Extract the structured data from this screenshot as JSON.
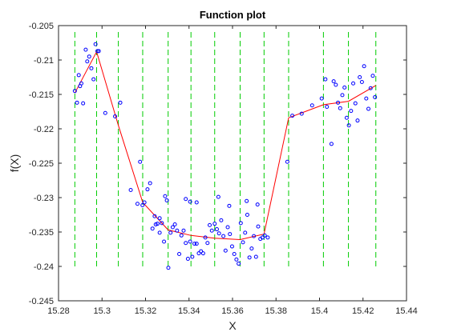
{
  "chart_data": {
    "type": "scatter",
    "title": "Function plot",
    "xlabel": "X",
    "ylabel": "f(X)",
    "xlim": [
      15.28,
      15.44
    ],
    "ylim": [
      -0.245,
      -0.205
    ],
    "xticks": [
      15.28,
      15.3,
      15.32,
      15.34,
      15.36,
      15.38,
      15.4,
      15.42,
      15.44
    ],
    "xtick_labels": [
      "15.28",
      "15.3",
      "15.32",
      "15.34",
      "15.36",
      "15.38",
      "15.4",
      "15.42",
      "15.44"
    ],
    "yticks": [
      -0.245,
      -0.24,
      -0.235,
      -0.23,
      -0.225,
      -0.22,
      -0.215,
      -0.21,
      -0.205
    ],
    "ytick_labels": [
      "-0.245",
      "-0.24",
      "-0.235",
      "-0.23",
      "-0.225",
      "-0.22",
      "-0.215",
      "-0.21",
      "-0.205"
    ],
    "grid": false,
    "colors": {
      "scatter": "#0000ff",
      "fit_line": "#ff0000",
      "breaks": "#00cc00",
      "axes": "#262626"
    },
    "vertical_break_lines": {
      "x": [
        15.2875,
        15.2975,
        15.3075,
        15.3187,
        15.3304,
        15.3409,
        15.3518,
        15.3635,
        15.3745,
        15.3858,
        15.4018,
        15.4133,
        15.4259
      ],
      "y_range": [
        -0.24,
        -0.2055
      ],
      "style": "dashed"
    },
    "fit_line": {
      "x": [
        15.2875,
        15.2975,
        15.3075,
        15.3187,
        15.3304,
        15.3409,
        15.3518,
        15.3635,
        15.3745,
        15.3858,
        15.4018,
        15.4133,
        15.4259
      ],
      "y": [
        -0.2148,
        -0.2088,
        -0.2195,
        -0.2307,
        -0.2347,
        -0.2355,
        -0.2359,
        -0.2361,
        -0.2353,
        -0.2184,
        -0.2165,
        -0.216,
        -0.2137
      ]
    },
    "scatter": {
      "x": [
        15.2875,
        15.2885,
        15.2893,
        15.2899,
        15.2905,
        15.2913,
        15.2925,
        15.2932,
        15.2941,
        15.2951,
        15.2961,
        15.297,
        15.2979,
        15.2985,
        15.3015,
        15.306,
        15.3084,
        15.3175,
        15.3195,
        15.3221,
        15.3247,
        15.3265,
        15.3275,
        15.329,
        15.3298,
        15.3132,
        15.3163,
        15.3186,
        15.3209,
        15.3232,
        15.3242,
        15.3255,
        15.3265,
        15.3285,
        15.3305,
        15.3315,
        15.3325,
        15.3335,
        15.3345,
        15.3355,
        15.3365,
        15.3375,
        15.3385,
        15.3395,
        15.3405,
        15.3415,
        15.3425,
        15.3435,
        15.3445,
        15.3455,
        15.3465,
        15.3475,
        15.3485,
        15.3495,
        15.3505,
        15.3518,
        15.3528,
        15.3538,
        15.3548,
        15.3558,
        15.3568,
        15.3578,
        15.3588,
        15.3598,
        15.3608,
        15.3618,
        15.3628,
        15.3638,
        15.3648,
        15.3658,
        15.3668,
        15.3678,
        15.3688,
        15.3698,
        15.3708,
        15.3718,
        15.3728,
        15.3738,
        15.3748,
        15.3762,
        15.3385,
        15.3405,
        15.3435,
        15.3535,
        15.3585,
        15.3665,
        15.3715,
        15.3852,
        15.3875,
        15.3918,
        15.3966,
        15.401,
        15.4027,
        15.4034,
        15.4055,
        15.4065,
        15.4075,
        15.4085,
        15.4095,
        15.4105,
        15.4115,
        15.4125,
        15.4135,
        15.4145,
        15.4155,
        15.4165,
        15.4175,
        15.4185,
        15.4195,
        15.4205,
        15.4215,
        15.4225,
        15.4235,
        15.4245,
        15.4255
      ],
      "y": [
        -0.2145,
        -0.2162,
        -0.2122,
        -0.2138,
        -0.2134,
        -0.2163,
        -0.2085,
        -0.2102,
        -0.2095,
        -0.2112,
        -0.2128,
        -0.2077,
        -0.2087,
        -0.2087,
        -0.2177,
        -0.2182,
        -0.2162,
        -0.2248,
        -0.2307,
        -0.2279,
        -0.2339,
        -0.233,
        -0.2337,
        -0.2298,
        -0.2304,
        -0.2289,
        -0.2309,
        -0.2311,
        -0.2288,
        -0.2345,
        -0.2327,
        -0.2338,
        -0.2351,
        -0.2364,
        -0.2402,
        -0.2351,
        -0.2343,
        -0.2339,
        -0.2348,
        -0.2382,
        -0.2355,
        -0.2348,
        -0.2366,
        -0.2389,
        -0.2364,
        -0.2386,
        -0.2367,
        -0.2367,
        -0.2381,
        -0.2378,
        -0.2381,
        -0.2358,
        -0.2366,
        -0.234,
        -0.2348,
        -0.2338,
        -0.2346,
        -0.2352,
        -0.2333,
        -0.2356,
        -0.2377,
        -0.2343,
        -0.2353,
        -0.2371,
        -0.2382,
        -0.239,
        -0.2396,
        -0.2337,
        -0.2365,
        -0.2351,
        -0.2325,
        -0.2387,
        -0.2374,
        -0.2356,
        -0.2386,
        -0.2342,
        -0.236,
        -0.2358,
        -0.2355,
        -0.2358,
        -0.2302,
        -0.2306,
        -0.2307,
        -0.2299,
        -0.2312,
        -0.2305,
        -0.231,
        -0.2248,
        -0.2181,
        -0.2178,
        -0.2166,
        -0.2156,
        -0.2128,
        -0.2168,
        -0.2222,
        -0.2131,
        -0.2136,
        -0.2162,
        -0.217,
        -0.2151,
        -0.214,
        -0.2184,
        -0.2195,
        -0.2174,
        -0.2134,
        -0.2163,
        -0.2188,
        -0.2125,
        -0.2132,
        -0.2109,
        -0.2156,
        -0.2171,
        -0.2141,
        -0.2123,
        -0.2154
      ]
    }
  }
}
